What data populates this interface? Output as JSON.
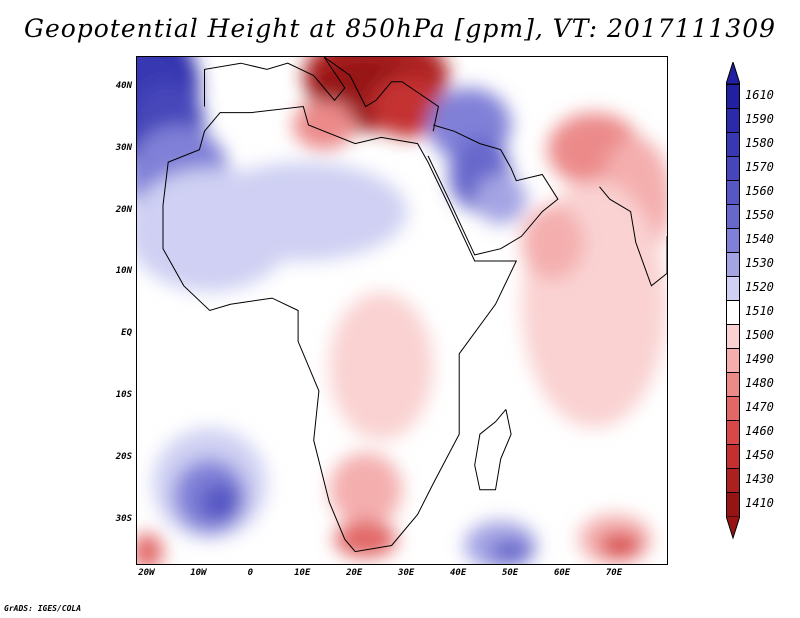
{
  "title": "Geopotential Height at 850hPa [gpm], VT: 2017111309",
  "footer": "GrADS: IGES/COLA",
  "lat_labels": [
    "40N",
    "30N",
    "20N",
    "10N",
    "EQ",
    "10S",
    "20S",
    "30S"
  ],
  "lon_labels": [
    "20W",
    "10W",
    "0",
    "10E",
    "20E",
    "30E",
    "40E",
    "50E",
    "60E",
    "70E"
  ],
  "colorbar": {
    "levels": [
      "1610",
      "1590",
      "1580",
      "1570",
      "1560",
      "1550",
      "1540",
      "1530",
      "1520",
      "1510",
      "1500",
      "1490",
      "1480",
      "1470",
      "1460",
      "1450",
      "1430",
      "1410"
    ],
    "colors": [
      "#2020a0",
      "#2b2baa",
      "#3838b2",
      "#4646ba",
      "#5656c4",
      "#6868cc",
      "#8080d8",
      "#a4a4e4",
      "#cfd0f3",
      "#ffffff",
      "#fad2d2",
      "#f4aeae",
      "#ec8a8a",
      "#e26868",
      "#d84848",
      "#c43030",
      "#ad2020",
      "#961414"
    ]
  },
  "map": {
    "lon_range": [
      -22,
      80
    ],
    "lat_range": [
      -37,
      45
    ],
    "blobs": [
      {
        "lon": -22,
        "lat": 40,
        "rx": 12,
        "ry": 11,
        "color": "#2b2baa"
      },
      {
        "lon": -20,
        "lat": 37,
        "rx": 9,
        "ry": 10,
        "color": "#3838b2"
      },
      {
        "lon": -16,
        "lat": 34,
        "rx": 7,
        "ry": 7,
        "color": "#4646ba"
      },
      {
        "lon": -14,
        "lat": 25,
        "rx": 10,
        "ry": 9,
        "color": "#8080d8"
      },
      {
        "lon": -8,
        "lat": 17,
        "rx": 16,
        "ry": 10,
        "color": "#cfd0f3"
      },
      {
        "lon": 10,
        "lat": 20,
        "rx": 20,
        "ry": 8,
        "color": "#cfd0f3"
      },
      {
        "lon": 24,
        "lat": 42,
        "rx": 14,
        "ry": 7,
        "color": "#ad2020"
      },
      {
        "lon": 22,
        "lat": 39,
        "rx": 11,
        "ry": 6,
        "color": "#961414"
      },
      {
        "lon": 30,
        "lat": 37,
        "rx": 7,
        "ry": 5,
        "color": "#c43030"
      },
      {
        "lon": 14,
        "lat": 34,
        "rx": 6,
        "ry": 4,
        "color": "#ec8a8a"
      },
      {
        "lon": 42,
        "lat": 34,
        "rx": 8,
        "ry": 6,
        "color": "#8080d8"
      },
      {
        "lon": 44,
        "lat": 26,
        "rx": 6,
        "ry": 6,
        "color": "#6868cc"
      },
      {
        "lon": 48,
        "lat": 22,
        "rx": 5,
        "ry": 4,
        "color": "#a4a4e4"
      },
      {
        "lon": 66,
        "lat": 30,
        "rx": 9,
        "ry": 6,
        "color": "#ec8a8a"
      },
      {
        "lon": 74,
        "lat": 22,
        "rx": 7,
        "ry": 10,
        "color": "#f4aeae"
      },
      {
        "lon": 66,
        "lat": 5,
        "rx": 14,
        "ry": 20,
        "color": "#fad2d2"
      },
      {
        "lon": 58,
        "lat": 15,
        "rx": 6,
        "ry": 6,
        "color": "#f4aeae"
      },
      {
        "lon": 25,
        "lat": -5,
        "rx": 10,
        "ry": 12,
        "color": "#fad2d2"
      },
      {
        "lon": 22,
        "lat": -25,
        "rx": 7,
        "ry": 6,
        "color": "#f4aeae"
      },
      {
        "lon": 22,
        "lat": -33,
        "rx": 6,
        "ry": 3,
        "color": "#e26868"
      },
      {
        "lon": -8,
        "lat": -24,
        "rx": 11,
        "ry": 9,
        "color": "#cfd0f3"
      },
      {
        "lon": -8,
        "lat": -26,
        "rx": 7,
        "ry": 6,
        "color": "#8080d8"
      },
      {
        "lon": -6,
        "lat": -27,
        "rx": 4,
        "ry": 3,
        "color": "#5656c4"
      },
      {
        "lon": 48,
        "lat": -34,
        "rx": 7,
        "ry": 4,
        "color": "#a4a4e4"
      },
      {
        "lon": 50,
        "lat": -35,
        "rx": 4,
        "ry": 2,
        "color": "#6868cc"
      },
      {
        "lon": 70,
        "lat": -33,
        "rx": 7,
        "ry": 4,
        "color": "#f4aeae"
      },
      {
        "lon": 71,
        "lat": -34,
        "rx": 4,
        "ry": 2,
        "color": "#d84848"
      },
      {
        "lon": -20,
        "lat": -35,
        "rx": 3,
        "ry": 3,
        "color": "#e26868"
      }
    ]
  }
}
